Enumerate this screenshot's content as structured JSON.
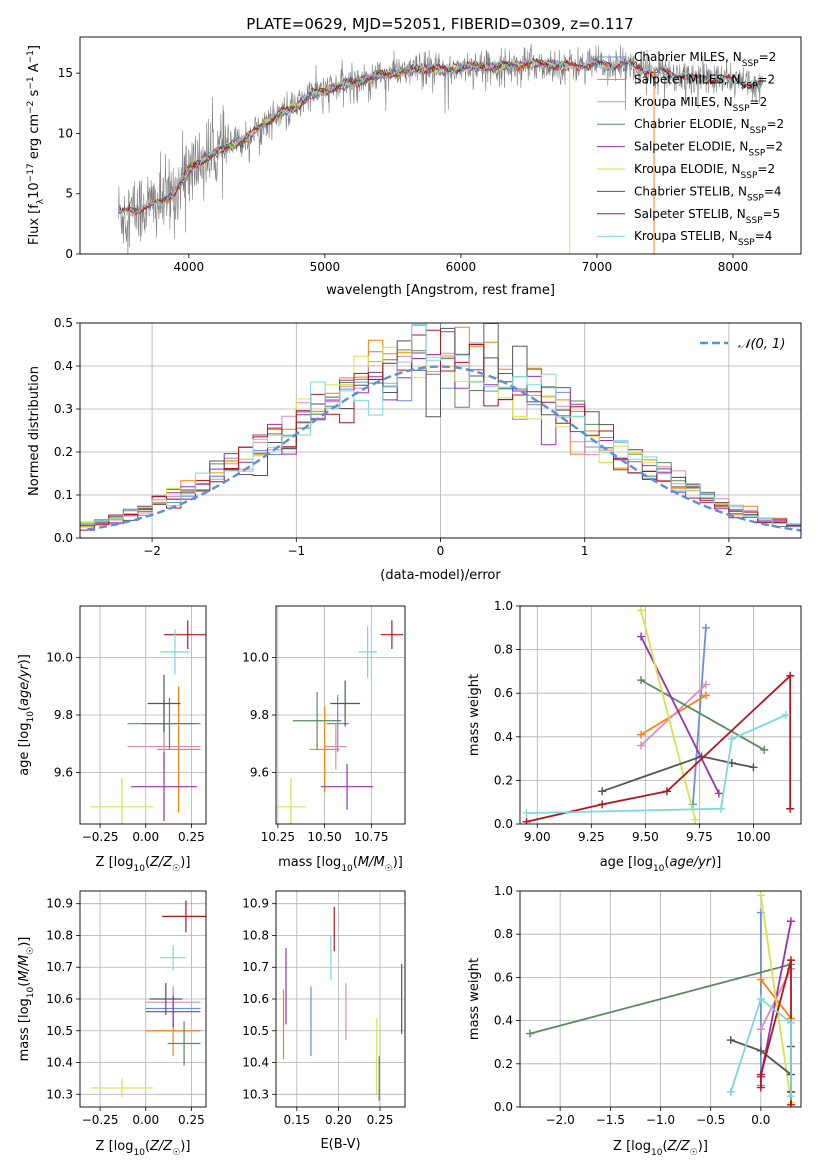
{
  "figure_title": "PLATE=0629, MJD=52051, FIBERID=0309, z=0.117",
  "colors": {
    "Chabrier MILES": "#6a8fdc",
    "Salpeter MILES": "#ff7f0e",
    "Kroupa MILES": "#e08ab8",
    "Chabrier ELODIE": "#5a8a5e",
    "Salpeter ELODIE": "#9b30b0",
    "Kroupa ELODIE": "#d4e34d",
    "Chabrier STELIB": "#555555",
    "Salpeter STELIB": "#b5141b",
    "Kroupa STELIB": "#7ad9dc"
  },
  "chart_data": [
    {
      "id": "spectrum",
      "type": "line",
      "title": "PLATE=0629, MJD=52051, FIBERID=0309, z=0.117",
      "xlabel": "wavelength [Angstrom, rest frame]",
      "ylabel": "Flux [f_λ10^-17 erg cm^-2 s^-1 A^-1]",
      "xlim": [
        3200,
        8500
      ],
      "ylim": [
        0,
        18
      ],
      "xticks": [
        4000,
        5000,
        6000,
        7000,
        8000
      ],
      "yticks": [
        0,
        5,
        10,
        15
      ],
      "legend_position": "top-right",
      "data_x": [
        3500,
        3600,
        3700,
        3800,
        3900,
        4000,
        4100,
        4200,
        4300,
        4400,
        4500,
        4600,
        4700,
        4800,
        4900,
        5000,
        5100,
        5200,
        5300,
        5400,
        5500,
        5600,
        5700,
        5800,
        5900,
        6000,
        6100,
        6200,
        6300,
        6400,
        6500,
        6600,
        6700,
        6800,
        6900,
        7000,
        7100,
        7200,
        7300,
        7400,
        7500,
        7600,
        7700,
        7800,
        7900,
        8000,
        8100,
        8200
      ],
      "data_y": [
        3.4,
        3.6,
        4.0,
        4.3,
        5.2,
        7.0,
        7.8,
        8.4,
        8.9,
        9.4,
        10.3,
        11.2,
        11.8,
        12.3,
        13.3,
        13.6,
        13.9,
        14.2,
        14.5,
        14.8,
        15.0,
        15.2,
        15.3,
        15.4,
        15.2,
        15.5,
        15.6,
        15.5,
        15.6,
        15.6,
        15.8,
        15.8,
        15.6,
        15.6,
        15.7,
        15.7,
        15.6,
        15.9,
        15.4,
        15.2,
        15.0,
        14.9,
        14.6,
        14.6,
        14.4,
        14.5,
        14.1,
        13.9
      ],
      "series": [
        {
          "name": "Chabrier MILES, N_SSP=2"
        },
        {
          "name": "Salpeter MILES, N_SSP=2"
        },
        {
          "name": "Kroupa MILES, N_SSP=2"
        },
        {
          "name": "Chabrier ELODIE, N_SSP=2"
        },
        {
          "name": "Salpeter ELODIE, N_SSP=2"
        },
        {
          "name": "Kroupa ELODIE, N_SSP=2"
        },
        {
          "name": "Chabrier STELIB, N_SSP=4"
        },
        {
          "name": "Salpeter STELIB, N_SSP=5"
        },
        {
          "name": "Kroupa STELIB, N_SSP=4"
        }
      ]
    },
    {
      "id": "residuals",
      "type": "bar",
      "xlabel": "(data-model)/error",
      "ylabel": "Normed distribution",
      "xlim": [
        -2.5,
        2.5
      ],
      "ylim": [
        0,
        0.5
      ],
      "xticks": [
        -2,
        -1,
        0,
        1,
        2
      ],
      "yticks": [
        0.0,
        0.1,
        0.2,
        0.3,
        0.4,
        0.5
      ],
      "legend": "𝒩(0, 1)",
      "legend_position": "top-right",
      "bin_width": 0.1
    },
    {
      "id": "z-age",
      "type": "scatter",
      "xlabel": "Z [log10(Z/Z☉)]",
      "ylabel": "age [log10(age/yr)]",
      "xlim": [
        -0.36,
        0.33
      ],
      "ylim": [
        9.42,
        10.18
      ],
      "xticks": [
        -0.25,
        0.0,
        0.25
      ],
      "yticks": [
        9.6,
        9.8,
        10.0
      ],
      "points": [
        {
          "model": "Chabrier MILES",
          "x": 0.1,
          "y": 9.77,
          "xerr": 0.2,
          "yerr": 0.08
        },
        {
          "model": "Salpeter MILES",
          "x": 0.18,
          "y": 9.68,
          "xerr": 0.12,
          "yerr": 0.22
        },
        {
          "model": "Kroupa MILES",
          "x": 0.1,
          "y": 9.69,
          "xerr": 0.2,
          "yerr": 0.08
        },
        {
          "model": "Chabrier ELODIE",
          "x": 0.13,
          "y": 9.77,
          "xerr": 0.15,
          "yerr": 0.09
        },
        {
          "model": "Salpeter ELODIE",
          "x": 0.1,
          "y": 9.55,
          "xerr": 0.18,
          "yerr": 0.12
        },
        {
          "model": "Kroupa ELODIE",
          "x": -0.13,
          "y": 9.48,
          "xerr": 0.17,
          "yerr": 0.1
        },
        {
          "model": "Chabrier STELIB",
          "x": 0.1,
          "y": 9.84,
          "xerr": 0.09,
          "yerr": 0.1
        },
        {
          "model": "Salpeter STELIB",
          "x": 0.23,
          "y": 10.08,
          "xerr": 0.13,
          "yerr": 0.05
        },
        {
          "model": "Kroupa STELIB",
          "x": 0.16,
          "y": 10.02,
          "xerr": 0.08,
          "yerr": 0.08
        }
      ]
    },
    {
      "id": "mass-age",
      "type": "scatter",
      "xlabel": "mass [log10(M/M☉)]",
      "xlim": [
        10.24,
        10.93
      ],
      "ylim": [
        9.42,
        10.18
      ],
      "xticks": [
        10.25,
        10.5,
        10.75
      ],
      "yticks": [
        9.6,
        9.8,
        10.0
      ],
      "points": [
        {
          "model": "Chabrier MILES",
          "x": 10.57,
          "y": 9.77,
          "xerr": 0.06,
          "yerr": 0.1
        },
        {
          "model": "Salpeter MILES",
          "x": 10.5,
          "y": 9.68,
          "xerr": 0.08,
          "yerr": 0.15
        },
        {
          "model": "Kroupa MILES",
          "x": 10.56,
          "y": 9.69,
          "xerr": 0.06,
          "yerr": 0.08
        },
        {
          "model": "Chabrier ELODIE",
          "x": 10.46,
          "y": 9.78,
          "xerr": 0.13,
          "yerr": 0.1
        },
        {
          "model": "Salpeter ELODIE",
          "x": 10.62,
          "y": 9.55,
          "xerr": 0.14,
          "yerr": 0.08
        },
        {
          "model": "Kroupa ELODIE",
          "x": 10.32,
          "y": 9.48,
          "xerr": 0.08,
          "yerr": 0.1
        },
        {
          "model": "Chabrier STELIB",
          "x": 10.61,
          "y": 9.84,
          "xerr": 0.08,
          "yerr": 0.08
        },
        {
          "model": "Salpeter STELIB",
          "x": 10.86,
          "y": 10.08,
          "xerr": 0.06,
          "yerr": 0.05
        },
        {
          "model": "Kroupa STELIB",
          "x": 10.73,
          "y": 10.02,
          "xerr": 0.05,
          "yerr": 0.09
        }
      ]
    },
    {
      "id": "age-weight",
      "type": "line",
      "xlabel": "age [log10(age/yr)]",
      "ylabel": "mass weight",
      "xlim": [
        8.92,
        10.22
      ],
      "ylim": [
        0.0,
        1.0
      ],
      "xticks": [
        9.0,
        9.25,
        9.5,
        9.75,
        10.0
      ],
      "yticks": [
        0.0,
        0.2,
        0.4,
        0.6,
        0.8,
        1.0
      ],
      "series": [
        {
          "model": "Chabrier MILES",
          "x": [
            9.72,
            9.78
          ],
          "y": [
            0.09,
            0.9
          ]
        },
        {
          "model": "Salpeter MILES",
          "x": [
            9.48,
            9.78
          ],
          "y": [
            0.41,
            0.59
          ]
        },
        {
          "model": "Kroupa MILES",
          "x": [
            9.48,
            9.78
          ],
          "y": [
            0.36,
            0.64
          ]
        },
        {
          "model": "Chabrier ELODIE",
          "x": [
            9.48,
            10.05
          ],
          "y": [
            0.66,
            0.34
          ]
        },
        {
          "model": "Salpeter ELODIE",
          "x": [
            9.48,
            9.84
          ],
          "y": [
            0.86,
            0.14
          ]
        },
        {
          "model": "Kroupa ELODIE",
          "x": [
            9.48,
            9.73
          ],
          "y": [
            0.98,
            0.02
          ]
        },
        {
          "model": "Chabrier STELIB",
          "x": [
            9.3,
            9.76,
            9.9,
            10.0
          ],
          "y": [
            0.15,
            0.31,
            0.28,
            0.26
          ]
        },
        {
          "model": "Salpeter STELIB",
          "x": [
            8.95,
            9.3,
            9.6,
            10.17,
            10.17
          ],
          "y": [
            0.01,
            0.09,
            0.15,
            0.68,
            0.07
          ]
        },
        {
          "model": "Kroupa STELIB",
          "x": [
            8.95,
            9.85,
            9.9,
            10.15
          ],
          "y": [
            0.05,
            0.07,
            0.39,
            0.5
          ]
        }
      ]
    },
    {
      "id": "z-mass",
      "type": "scatter",
      "xlabel": "Z [log10(Z/Z☉)]",
      "ylabel": "mass [log10(M/M☉)]",
      "xlim": [
        -0.36,
        0.33
      ],
      "ylim": [
        10.26,
        10.94
      ],
      "xticks": [
        -0.25,
        0.0,
        0.25
      ],
      "yticks": [
        10.3,
        10.4,
        10.5,
        10.6,
        10.7,
        10.8,
        10.9
      ],
      "points": [
        {
          "model": "Chabrier MILES",
          "x": 0.15,
          "y": 10.57,
          "xerr": 0.15,
          "yerr": 0.06
        },
        {
          "model": "Salpeter MILES",
          "x": 0.15,
          "y": 10.5,
          "xerr": 0.15,
          "yerr": 0.08
        },
        {
          "model": "Kroupa MILES",
          "x": 0.15,
          "y": 10.59,
          "xerr": 0.15,
          "yerr": 0.05
        },
        {
          "model": "Chabrier ELODIE",
          "x": 0.21,
          "y": 10.46,
          "xerr": 0.09,
          "yerr": 0.07
        },
        {
          "model": "Salpeter ELODIE",
          "x": 0.15,
          "y": 10.56,
          "xerr": 0.15,
          "yerr": 0.05
        },
        {
          "model": "Kroupa ELODIE",
          "x": -0.13,
          "y": 10.32,
          "xerr": 0.17,
          "yerr": 0.03
        },
        {
          "model": "Chabrier STELIB",
          "x": 0.11,
          "y": 10.6,
          "xerr": 0.09,
          "yerr": 0.05
        },
        {
          "model": "Salpeter STELIB",
          "x": 0.22,
          "y": 10.86,
          "xerr": 0.13,
          "yerr": 0.05
        },
        {
          "model": "Kroupa STELIB",
          "x": 0.15,
          "y": 10.73,
          "xerr": 0.07,
          "yerr": 0.04
        }
      ]
    },
    {
      "id": "ebv-mass",
      "type": "scatter",
      "xlabel": "E(B-V)",
      "xlim": [
        0.125,
        0.28
      ],
      "ylim": [
        10.26,
        10.94
      ],
      "xticks": [
        0.15,
        0.2,
        0.25
      ],
      "yticks": [
        10.3,
        10.4,
        10.5,
        10.6,
        10.7,
        10.8,
        10.9
      ],
      "points": [
        {
          "model": "Chabrier MILES",
          "x": 0.167,
          "y": 10.53,
          "yerr": 0.11
        },
        {
          "model": "Salpeter MILES",
          "x": 0.134,
          "y": 10.52,
          "yerr": 0.11
        },
        {
          "model": "Kroupa MILES",
          "x": 0.209,
          "y": 10.56,
          "yerr": 0.09
        },
        {
          "model": "Chabrier ELODIE",
          "x": 0.249,
          "y": 10.35,
          "yerr": 0.07
        },
        {
          "model": "Salpeter ELODIE",
          "x": 0.137,
          "y": 10.64,
          "yerr": 0.12
        },
        {
          "model": "Kroupa ELODIE",
          "x": 0.246,
          "y": 10.42,
          "yerr": 0.12
        },
        {
          "model": "Chabrier STELIB",
          "x": 0.276,
          "y": 10.6,
          "yerr": 0.11
        },
        {
          "model": "Salpeter STELIB",
          "x": 0.195,
          "y": 10.82,
          "yerr": 0.07
        },
        {
          "model": "Kroupa STELIB",
          "x": 0.191,
          "y": 10.73,
          "yerr": 0.07
        }
      ]
    },
    {
      "id": "z-weight",
      "type": "line",
      "xlabel": "Z [log10(Z/Z☉)]",
      "ylabel": "mass weight",
      "xlim": [
        -2.4,
        0.4
      ],
      "ylim": [
        0.0,
        1.0
      ],
      "xticks": [
        -2.0,
        -1.5,
        -1.0,
        -0.5,
        0.0
      ],
      "yticks": [
        0.0,
        0.2,
        0.4,
        0.6,
        0.8,
        1.0
      ],
      "series": [
        {
          "model": "Chabrier MILES",
          "x": [
            0.0,
            0.0
          ],
          "y": [
            0.1,
            0.9
          ]
        },
        {
          "model": "Salpeter MILES",
          "x": [
            0.0,
            0.3
          ],
          "y": [
            0.59,
            0.41
          ]
        },
        {
          "model": "Kroupa MILES",
          "x": [
            0.0,
            0.3
          ],
          "y": [
            0.36,
            0.64
          ]
        },
        {
          "model": "Chabrier ELODIE",
          "x": [
            -2.3,
            0.3
          ],
          "y": [
            0.34,
            0.66
          ]
        },
        {
          "model": "Salpeter ELODIE",
          "x": [
            0.0,
            0.3
          ],
          "y": [
            0.14,
            0.86
          ]
        },
        {
          "model": "Kroupa ELODIE",
          "x": [
            0.0,
            0.3
          ],
          "y": [
            0.98,
            0.02
          ]
        },
        {
          "model": "Chabrier STELIB",
          "x": [
            -0.3,
            0.0,
            0.3,
            0.3
          ],
          "y": [
            0.31,
            0.26,
            0.15,
            0.28
          ]
        },
        {
          "model": "Salpeter STELIB",
          "x": [
            0.0,
            0.0,
            0.3,
            0.3,
            0.3
          ],
          "y": [
            0.09,
            0.15,
            0.68,
            0.07,
            0.01
          ]
        },
        {
          "model": "Kroupa STELIB",
          "x": [
            -0.3,
            0.0,
            0.3,
            0.3
          ],
          "y": [
            0.07,
            0.5,
            0.39,
            0.05
          ]
        }
      ]
    }
  ]
}
